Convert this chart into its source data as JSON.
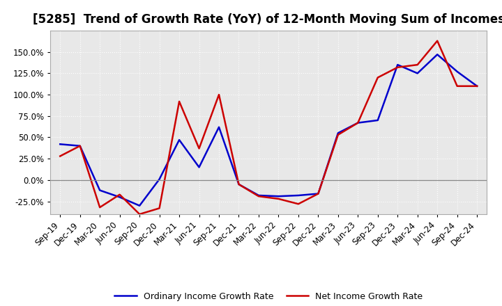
{
  "title": "[5285]  Trend of Growth Rate (YoY) of 12-Month Moving Sum of Incomes",
  "x_labels": [
    "Sep-19",
    "Dec-19",
    "Mar-20",
    "Jun-20",
    "Sep-20",
    "Dec-20",
    "Mar-21",
    "Jun-21",
    "Sep-21",
    "Dec-21",
    "Mar-22",
    "Jun-22",
    "Sep-22",
    "Dec-22",
    "Mar-23",
    "Jun-23",
    "Sep-23",
    "Dec-23",
    "Mar-24",
    "Jun-24",
    "Sep-24",
    "Dec-24"
  ],
  "ordinary_income": [
    0.42,
    0.4,
    -0.12,
    -0.2,
    -0.3,
    0.01,
    0.47,
    0.15,
    0.62,
    -0.05,
    -0.18,
    -0.19,
    -0.18,
    -0.16,
    0.55,
    0.67,
    0.7,
    1.35,
    1.25,
    1.47,
    1.27,
    1.1
  ],
  "net_income": [
    0.28,
    0.4,
    -0.32,
    -0.17,
    -0.4,
    -0.33,
    0.92,
    0.37,
    1.0,
    -0.05,
    -0.19,
    -0.22,
    -0.28,
    -0.16,
    0.53,
    0.67,
    1.2,
    1.32,
    1.35,
    1.63,
    1.1,
    1.1
  ],
  "ordinary_color": "#0000cc",
  "net_color": "#cc0000",
  "line_width": 1.8,
  "ylim": [
    -0.4,
    1.75
  ],
  "yticks": [
    -0.25,
    0.0,
    0.25,
    0.5,
    0.75,
    1.0,
    1.25,
    1.5
  ],
  "ytick_labels": [
    "-25.0%",
    "0.0%",
    "25.0%",
    "50.0%",
    "75.0%",
    "100.0%",
    "125.0%",
    "150.0%"
  ],
  "legend_ordinary": "Ordinary Income Growth Rate",
  "legend_net": "Net Income Growth Rate",
  "bg_color": "#ffffff",
  "plot_bg_color": "#e8e8e8",
  "grid_color": "#ffffff",
  "title_fontsize": 12,
  "tick_fontsize": 8.5
}
